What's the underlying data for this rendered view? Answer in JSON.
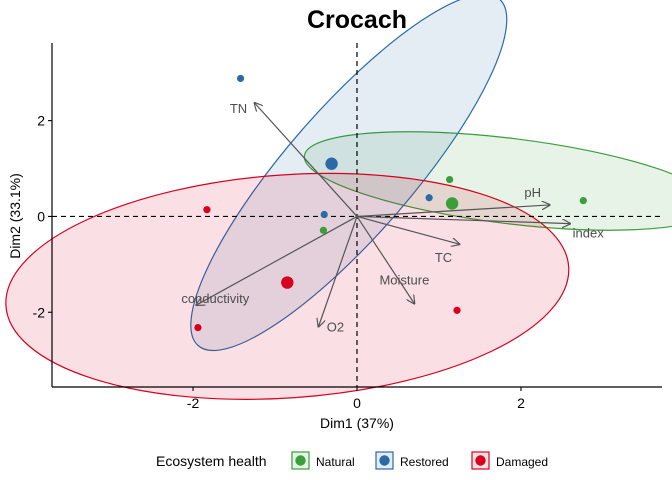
{
  "chart_data": {
    "type": "scatter",
    "title": "Crocach",
    "xlabel": "Dim1 (37%)",
    "ylabel": "Dim2 (33.1%)",
    "xlim": [
      -3.72,
      3.72
    ],
    "ylim": [
      -3.56,
      3.62
    ],
    "x_ticks": [
      -2,
      0,
      2
    ],
    "x_tick_labels": [
      "-2",
      "0",
      "2"
    ],
    "y_ticks": [
      -2,
      0,
      2
    ],
    "y_tick_labels": [
      "-2",
      "0",
      "2"
    ],
    "grid": false,
    "reference_lines": [
      {
        "axis": "x",
        "value": 0,
        "style": "dashed"
      },
      {
        "axis": "y",
        "value": 0,
        "style": "dashed"
      }
    ],
    "legend": {
      "title": "Ecosystem health",
      "position": "bottom"
    },
    "series": [
      {
        "name": "Natural",
        "color": "#3a9e3a",
        "points": [
          {
            "x": 1.13,
            "y": 0.77
          },
          {
            "x": 2.76,
            "y": 0.33
          },
          {
            "x": -0.41,
            "y": -0.29
          }
        ],
        "centroid": {
          "x": 1.16,
          "y": 0.27
        },
        "ellipse": {
          "cx": 1.86,
          "cy": 0.74,
          "rx": 2.52,
          "ry": 0.52,
          "angle_deg": -7
        }
      },
      {
        "name": "Restored",
        "color": "#2b6aa8",
        "points": [
          {
            "x": -1.42,
            "y": 2.88
          },
          {
            "x": -0.4,
            "y": 0.04
          },
          {
            "x": 0.88,
            "y": 0.39
          }
        ],
        "centroid": {
          "x": -0.31,
          "y": 1.1
        },
        "ellipse": {
          "cx": -0.1,
          "cy": 0.92,
          "rx": 2.8,
          "ry": 0.77,
          "angle_deg": 49
        }
      },
      {
        "name": "Damaged",
        "color": "#d7001e",
        "points": [
          {
            "x": -1.83,
            "y": 0.14
          },
          {
            "x": -1.94,
            "y": -2.32
          },
          {
            "x": 1.22,
            "y": -1.96
          }
        ],
        "centroid": {
          "x": -0.85,
          "y": -1.38
        },
        "ellipse": {
          "cx": -0.85,
          "cy": -1.46,
          "rx": 3.44,
          "ry": 1.36,
          "angle_deg": 4
        }
      }
    ],
    "variables": [
      {
        "name": "TN",
        "x": -1.25,
        "y": 2.37
      },
      {
        "name": "pH",
        "x": 2.35,
        "y": 0.24
      },
      {
        "name": "index",
        "x": 2.6,
        "y": -0.15
      },
      {
        "name": "TC",
        "x": 1.25,
        "y": -0.58
      },
      {
        "name": "Moisture",
        "x": 0.7,
        "y": -1.82
      },
      {
        "name": "O2",
        "x": -0.47,
        "y": -2.3
      },
      {
        "name": "conductivity",
        "x": -1.96,
        "y": -1.85
      }
    ]
  }
}
